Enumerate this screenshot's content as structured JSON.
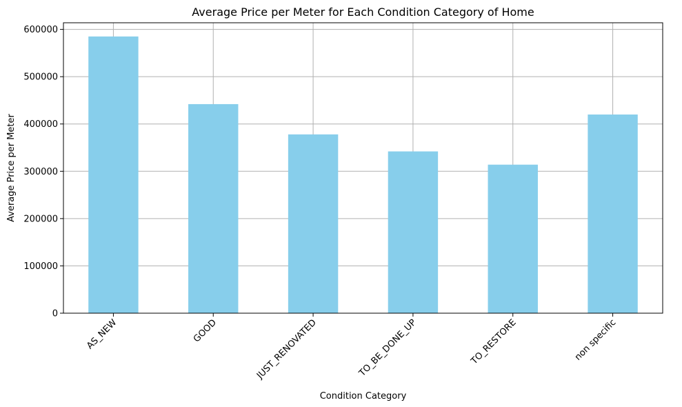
{
  "chart_data": {
    "type": "bar",
    "title": "Average Price per Meter for Each Condition Category of Home",
    "xlabel": "Condition Category",
    "ylabel": "Average Price per Meter",
    "categories": [
      "AS_NEW",
      "GOOD",
      "JUST_RENOVATED",
      "TO_BE_DONE_UP",
      "TO_RESTORE",
      "non specific"
    ],
    "values": [
      585000,
      442000,
      378000,
      342000,
      314000,
      420000
    ],
    "ylim": [
      0,
      614000
    ],
    "yticks": [
      0,
      100000,
      200000,
      300000,
      400000,
      500000,
      600000
    ],
    "ytick_labels": [
      "0",
      "100000",
      "200000",
      "300000",
      "400000",
      "500000",
      "600000"
    ],
    "grid": true,
    "bar_color": "#87ceeb",
    "grid_color": "#b0b0b0"
  }
}
